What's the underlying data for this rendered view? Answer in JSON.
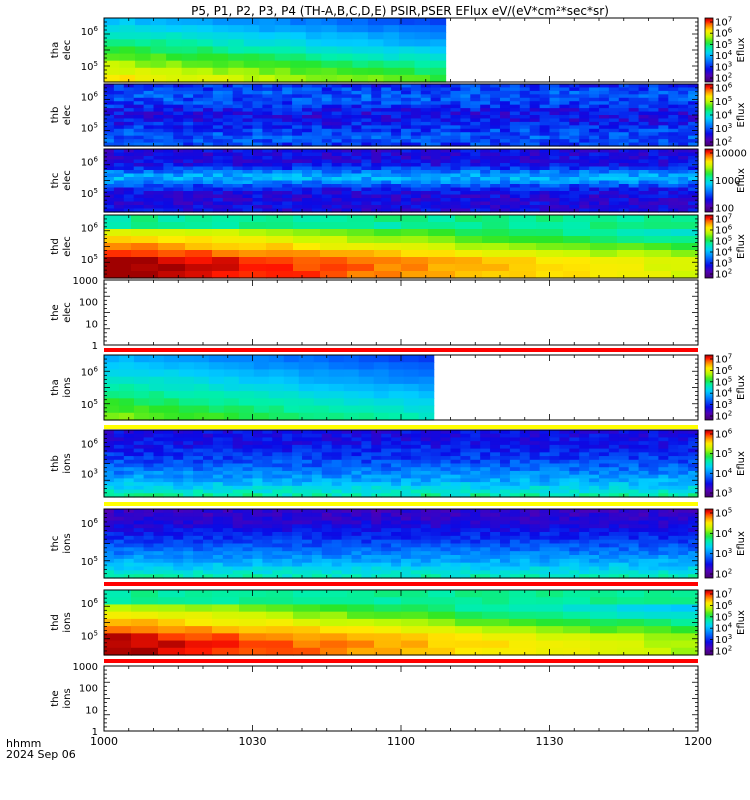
{
  "chart_data": {
    "type": "heatmap",
    "title": "P5, P1, P2, P3, P4 (TH-A,B,C,D,E) PSIR,PSER EFlux eV/(eV*cm²*sec*sr)",
    "xlabel_line1": "hhmm",
    "xlabel_line2": "2024 Sep 06",
    "x_range": [
      "1000",
      "1200"
    ],
    "x_ticks": [
      "1000",
      "1030",
      "1100",
      "1130",
      "1200"
    ],
    "colorbar_label": "Eflux",
    "panels": [
      {
        "id": "tha-elec",
        "label": [
          "tha",
          "elec"
        ],
        "kind": "spec",
        "pattern": "tha",
        "data_end_frac": 0.575,
        "yticks": [
          {
            "b": "10",
            "e": "6",
            "f": 0.2
          },
          {
            "b": "10",
            "e": "5",
            "f": 0.75
          }
        ],
        "cbar": [
          {
            "b": "10",
            "e": "7"
          },
          {
            "b": "10",
            "e": "6"
          },
          {
            "b": "10",
            "e": "5"
          },
          {
            "b": "10",
            "e": "4"
          },
          {
            "b": "10",
            "e": "3"
          },
          {
            "b": "10",
            "e": "2"
          }
        ]
      },
      {
        "id": "thb-elec",
        "label": [
          "thb",
          "elec"
        ],
        "kind": "spec",
        "pattern": "thb",
        "data_end_frac": 1.0,
        "yticks": [
          {
            "b": "10",
            "e": "6",
            "f": 0.2
          },
          {
            "b": "10",
            "e": "5",
            "f": 0.7
          }
        ],
        "cbar": [
          {
            "b": "10",
            "e": "6"
          },
          {
            "b": "10",
            "e": "5"
          },
          {
            "b": "10",
            "e": "4"
          },
          {
            "b": "10",
            "e": "3"
          },
          {
            "b": "10",
            "e": "2"
          }
        ]
      },
      {
        "id": "thc-elec",
        "label": [
          "thc",
          "elec"
        ],
        "kind": "spec",
        "pattern": "thc",
        "data_end_frac": 1.0,
        "yticks": [
          {
            "b": "10",
            "e": "6",
            "f": 0.2
          },
          {
            "b": "10",
            "e": "5",
            "f": 0.7
          }
        ],
        "cbar": [
          {
            "b": "10000",
            "e": ""
          },
          {
            "b": "1000",
            "e": ""
          },
          {
            "b": "100",
            "e": ""
          }
        ]
      },
      {
        "id": "thd-elec",
        "label": [
          "thd",
          "elec"
        ],
        "kind": "spec",
        "pattern": "thd",
        "data_end_frac": 1.0,
        "yticks": [
          {
            "b": "10",
            "e": "6",
            "f": 0.2
          },
          {
            "b": "10",
            "e": "5",
            "f": 0.7
          }
        ],
        "cbar": [
          {
            "b": "10",
            "e": "7"
          },
          {
            "b": "10",
            "e": "6"
          },
          {
            "b": "10",
            "e": "5"
          },
          {
            "b": "10",
            "e": "4"
          },
          {
            "b": "10",
            "e": "3"
          },
          {
            "b": "10",
            "e": "2"
          }
        ]
      },
      {
        "id": "the-elec",
        "label": [
          "the",
          "elec"
        ],
        "kind": "empty",
        "yticks": [
          {
            "b": "1000",
            "e": "",
            "f": 0.0
          },
          {
            "b": "100",
            "e": "",
            "f": 0.333
          },
          {
            "b": "10",
            "e": "",
            "f": 0.667
          },
          {
            "b": "1",
            "e": "",
            "f": 1.0
          }
        ]
      },
      {
        "id": "tha-ions",
        "label": [
          "tha",
          "ions"
        ],
        "kind": "spec",
        "pattern": "tha_i",
        "data_end_frac": 0.555,
        "yticks": [
          {
            "b": "10",
            "e": "6",
            "f": 0.25
          },
          {
            "b": "10",
            "e": "5",
            "f": 0.75
          }
        ],
        "cbar": [
          {
            "b": "10",
            "e": "7"
          },
          {
            "b": "10",
            "e": "6"
          },
          {
            "b": "10",
            "e": "5"
          },
          {
            "b": "10",
            "e": "4"
          },
          {
            "b": "10",
            "e": "3"
          },
          {
            "b": "10",
            "e": "2"
          }
        ]
      },
      {
        "id": "thb-ions",
        "label": [
          "thb",
          "ions"
        ],
        "kind": "spec",
        "pattern": "thb_i",
        "data_end_frac": 1.0,
        "yticks": [
          {
            "b": "10",
            "e": "6",
            "f": 0.2
          },
          {
            "b": "10",
            "e": "3",
            "f": 0.65
          }
        ],
        "cbar": [
          {
            "b": "10",
            "e": "6"
          },
          {
            "b": "10",
            "e": "5"
          },
          {
            "b": "10",
            "e": "4"
          },
          {
            "b": "10",
            "e": "3"
          }
        ]
      },
      {
        "id": "thc-ions",
        "label": [
          "thc",
          "ions"
        ],
        "kind": "spec",
        "pattern": "thc_i",
        "data_end_frac": 1.0,
        "yticks": [
          {
            "b": "10",
            "e": "6",
            "f": 0.2
          },
          {
            "b": "10",
            "e": "5",
            "f": 0.75
          }
        ],
        "cbar": [
          {
            "b": "10",
            "e": "5"
          },
          {
            "b": "10",
            "e": "4"
          },
          {
            "b": "10",
            "e": "3"
          },
          {
            "b": "10",
            "e": "2"
          }
        ]
      },
      {
        "id": "thd-ions",
        "label": [
          "thd",
          "ions"
        ],
        "kind": "spec",
        "pattern": "thd_i",
        "data_end_frac": 1.0,
        "yticks": [
          {
            "b": "10",
            "e": "6",
            "f": 0.2
          },
          {
            "b": "10",
            "e": "5",
            "f": 0.7
          }
        ],
        "cbar": [
          {
            "b": "10",
            "e": "7"
          },
          {
            "b": "10",
            "e": "6"
          },
          {
            "b": "10",
            "e": "5"
          },
          {
            "b": "10",
            "e": "4"
          },
          {
            "b": "10",
            "e": "3"
          },
          {
            "b": "10",
            "e": "2"
          }
        ]
      },
      {
        "id": "the-ions",
        "label": [
          "the",
          "ions"
        ],
        "kind": "empty",
        "yticks": [
          {
            "b": "1000",
            "e": "",
            "f": 0.0
          },
          {
            "b": "100",
            "e": "",
            "f": 0.333
          },
          {
            "b": "10",
            "e": "",
            "f": 0.667
          },
          {
            "b": "1",
            "e": "",
            "f": 1.0
          }
        ]
      }
    ],
    "colors": {
      "flag_red": "#ff0000",
      "flag_yellow": "#ffff00"
    }
  }
}
